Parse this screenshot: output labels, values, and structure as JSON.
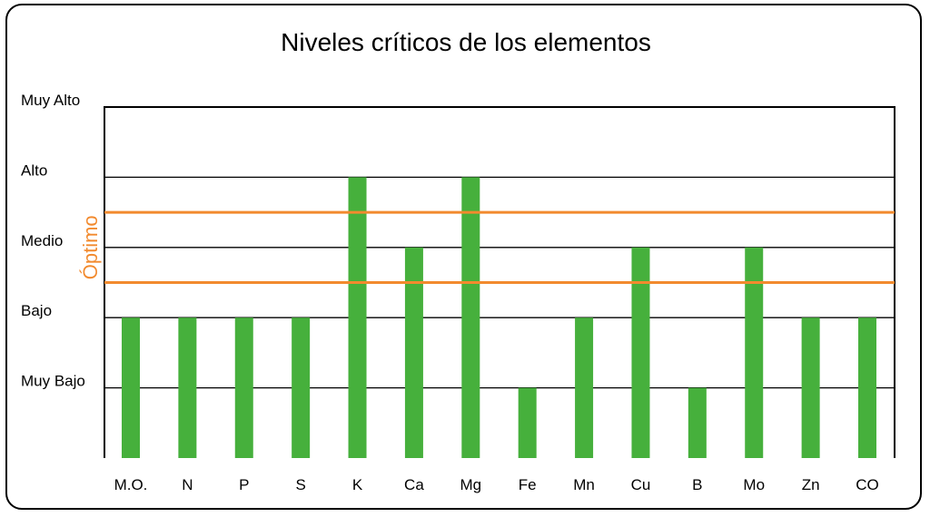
{
  "chart_data": {
    "type": "bar",
    "title": "Niveles críticos de los elementos",
    "xlabel": "",
    "ylabel": "",
    "y_levels": [
      "Muy Bajo",
      "Bajo",
      "Medio",
      "Alto",
      "Muy Alto"
    ],
    "ylim": [
      0,
      5
    ],
    "categories": [
      "M.O.",
      "N",
      "P",
      "S",
      "K",
      "Ca",
      "Mg",
      "Fe",
      "Mn",
      "Cu",
      "B",
      "Mo",
      "Zn",
      "CO"
    ],
    "values": [
      2,
      2,
      2,
      2,
      4,
      3,
      4,
      1,
      2,
      3,
      1,
      3,
      2,
      2
    ],
    "optimal_band": {
      "label": "Óptimo",
      "range": [
        2.5,
        3.5
      ],
      "color": "#F28A2E"
    },
    "grid": true,
    "legend": "none",
    "colors": {
      "bar": "#46B03C",
      "gridline": "#000000",
      "band_line": "#F28A2E"
    }
  }
}
